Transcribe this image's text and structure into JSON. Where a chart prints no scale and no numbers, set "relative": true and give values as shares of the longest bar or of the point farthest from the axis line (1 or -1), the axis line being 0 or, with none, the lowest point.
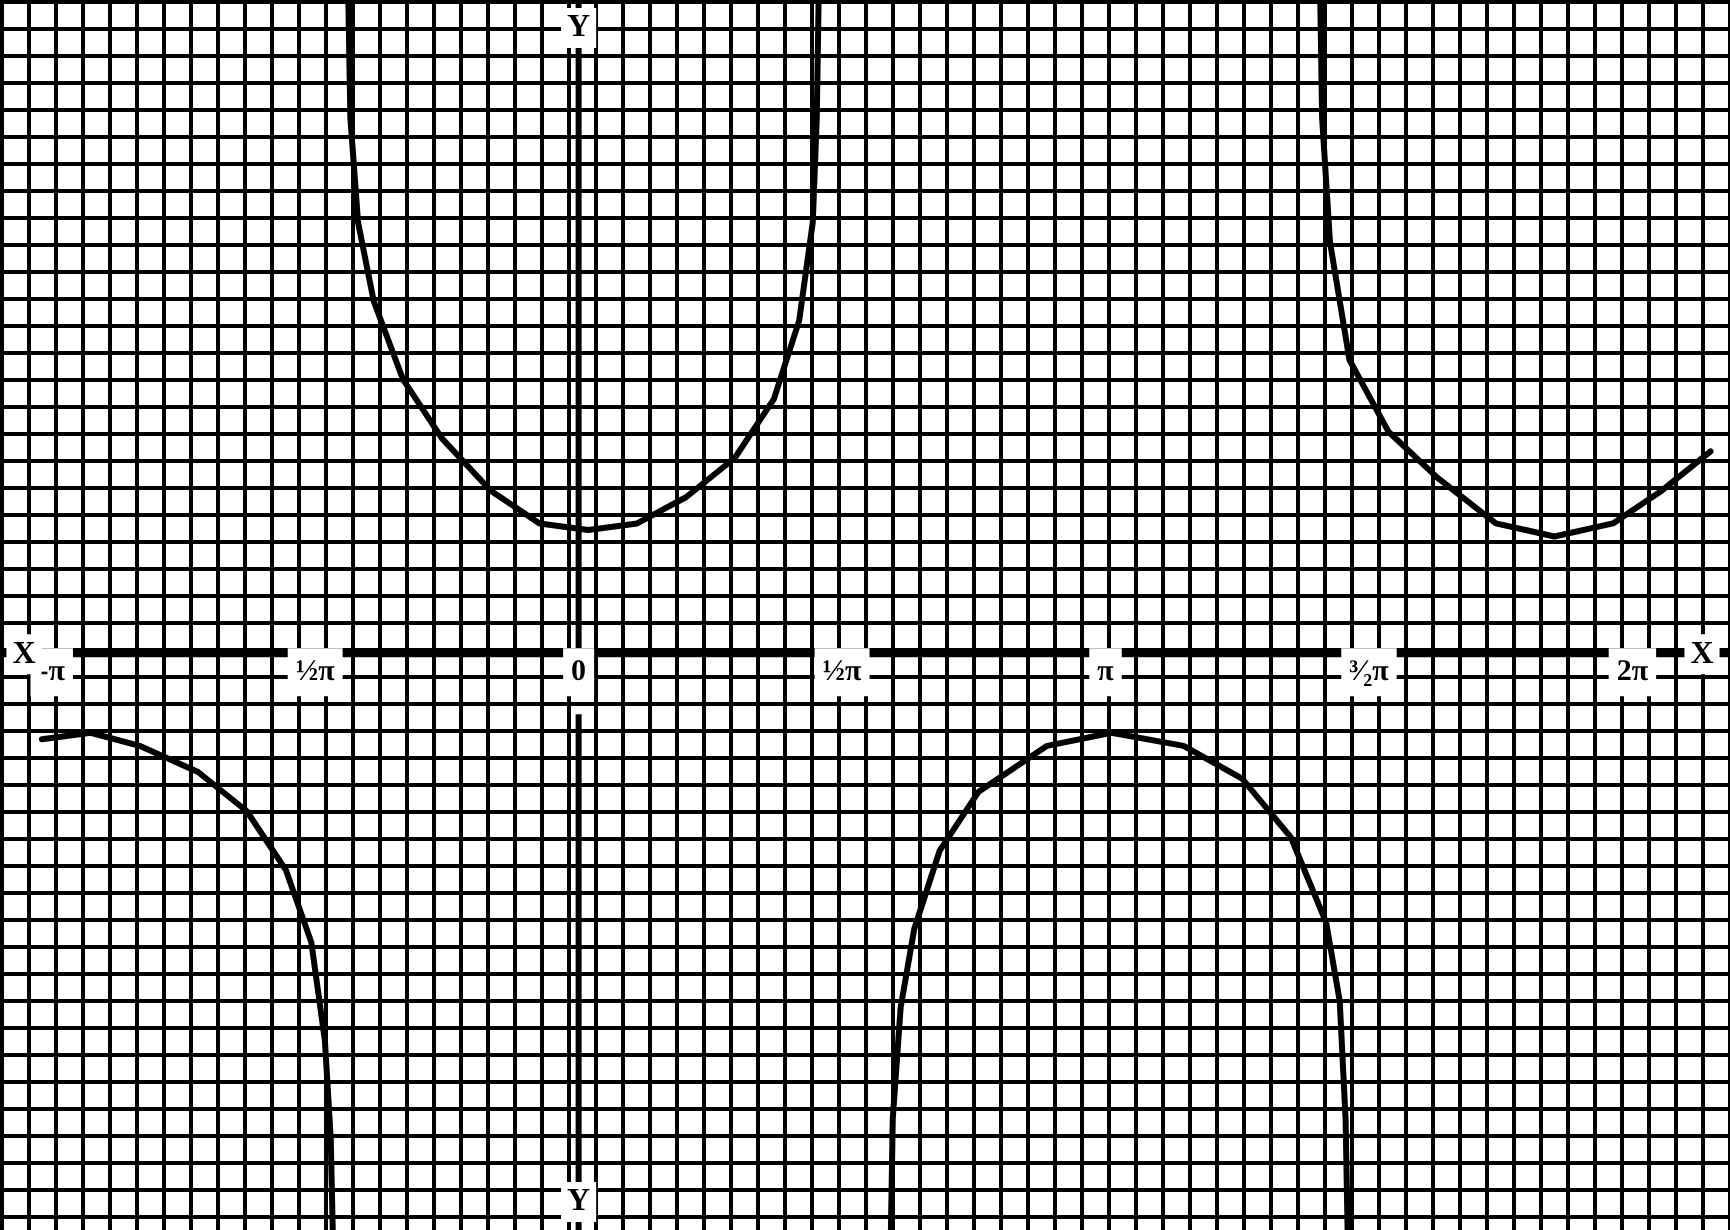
{
  "chart_data": {
    "type": "line",
    "relative": true,
    "xlabel": "X",
    "ylabel": "Y",
    "xlim": [
      -3.45,
      6.865
    ],
    "xticks": [
      {
        "value": -3.1416,
        "label": "-π"
      },
      {
        "value": -1.5708,
        "label": "½π"
      },
      0,
      {
        "value": 1.5708,
        "label": "½π"
      },
      {
        "value": 3.1416,
        "label": "π"
      },
      {
        "value": 4.7124,
        "label": "³⁄₂π"
      },
      {
        "value": 6.2832,
        "label": "2π"
      }
    ],
    "legend": false,
    "marker": "none",
    "line_style": "solid",
    "series": [
      {
        "color": "#000000",
        "x": [
          -3.2,
          -2.909,
          -2.618,
          -2.269,
          -1.978,
          -1.745,
          -1.594,
          -1.513,
          -1.478,
          -1.466
        ],
        "values": [
          -0.13,
          -0.12,
          -0.14,
          -0.18,
          -0.24,
          -0.33,
          -0.44,
          -0.59,
          -0.74,
          -0.88
        ]
      },
      {
        "color": "#000000",
        "x": [
          -1.373,
          -1.361,
          -1.315,
          -1.222,
          -1.047,
          -0.815,
          -0.524,
          -0.233,
          0.058,
          0.349,
          0.64,
          0.931,
          1.164,
          1.315,
          1.396,
          1.42,
          1.431
        ],
        "values": [
          1,
          0.82,
          0.66,
          0.54,
          0.42,
          0.33,
          0.25,
          0.2,
          0.19,
          0.2,
          0.24,
          0.3,
          0.39,
          0.51,
          0.66,
          0.82,
          1
        ]
      },
      {
        "color": "#000000",
        "x": [
          1.862,
          1.873,
          1.92,
          2.001,
          2.153,
          2.385,
          2.793,
          3.177,
          3.607,
          3.956,
          4.247,
          4.457,
          4.538,
          4.573,
          4.585
        ],
        "values": [
          -0.88,
          -0.71,
          -0.54,
          -0.42,
          -0.3,
          -0.21,
          -0.14,
          -0.12,
          -0.14,
          -0.19,
          -0.28,
          -0.41,
          -0.53,
          -0.71,
          -0.88
        ]
      },
      {
        "color": "#000000",
        "x": [
          4.422,
          4.433,
          4.48,
          4.596,
          4.829,
          5.12,
          5.469,
          5.818,
          6.167,
          6.458,
          6.749
        ],
        "values": [
          1,
          0.82,
          0.63,
          0.45,
          0.34,
          0.27,
          0.2,
          0.18,
          0.2,
          0.25,
          0.31
        ]
      }
    ]
  }
}
